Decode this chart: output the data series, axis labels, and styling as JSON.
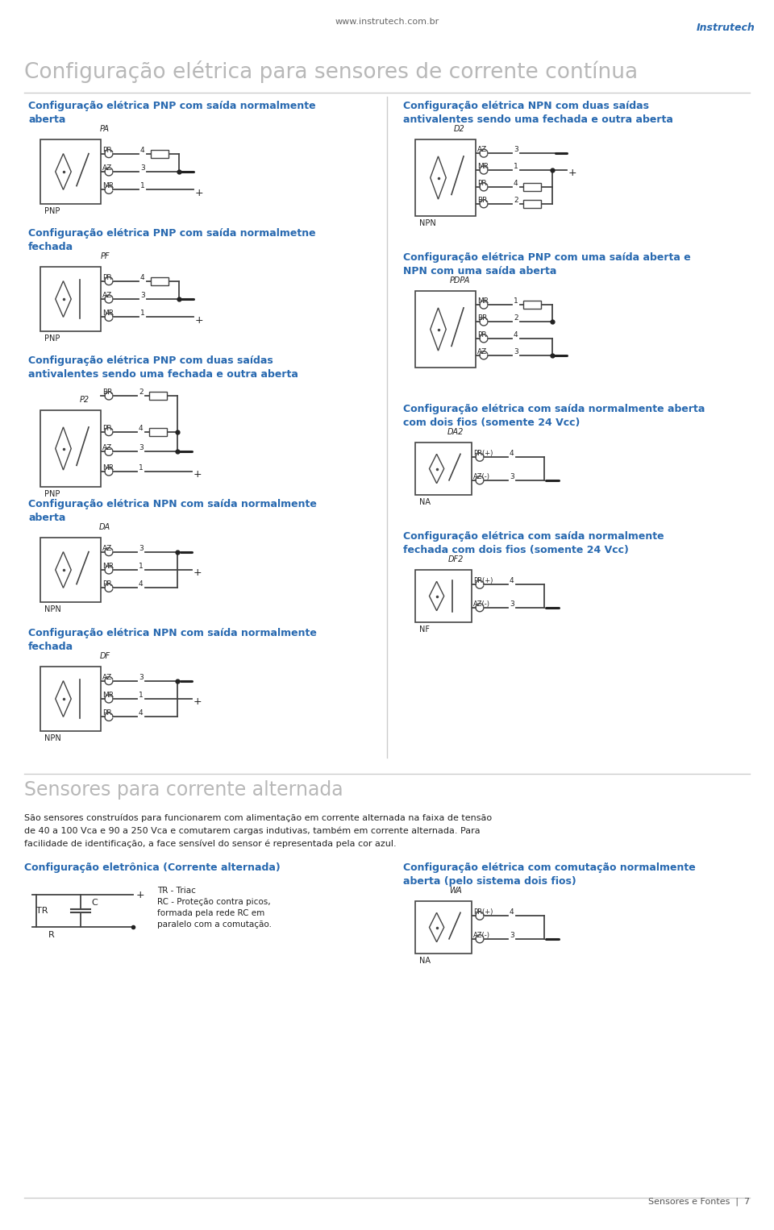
{
  "title_main": "Configuração elétrica para sensores de corrente contínua",
  "website": "www.instrutech.com.br",
  "footer": "Sensores e Fontes  |  7",
  "blue_color": "#2869B0",
  "black_color": "#222222",
  "line_color": "#444444",
  "gray_color": "#aaaaaa",
  "bg_color": "#ffffff",
  "ac_title": "Sensores para corrente alternada",
  "ac_text1": "São sensores construídos para funcionarem com alimentação em corrente alternada na faixa de tensão",
  "ac_text2": "de 40 a 100 Vca e 90 a 250 Vca e comutarem cargas indutivas, também em corrente alternada. Para",
  "ac_text3": "facilidade de identificação, a face sensível do sensor é representada pela cor azul.",
  "ac_elec_title": "Configuração eletrônica (Corrente alternada)",
  "ac_elec_note1": "TR - Triac",
  "ac_elec_note2": "RC - Proteção contra picos,",
  "ac_elec_note3": "formada pela rede RC em",
  "ac_elec_note4": "paralelo com a comutação.",
  "ac_switch_title": "Configuração elétrica com comutação normalmente\naberta (pelo sistema dois fios)",
  "ac_switch_code": "WA"
}
